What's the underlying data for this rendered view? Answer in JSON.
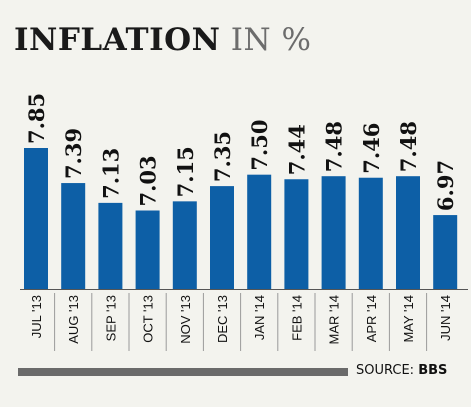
{
  "title": {
    "main": "INFLATION",
    "unit": "IN %"
  },
  "source": {
    "label": "SOURCE:",
    "value": "BBS"
  },
  "chart_data": {
    "type": "bar",
    "title": "INFLATION IN %",
    "categories": [
      "JUL '13",
      "AUG '13",
      "SEP '13",
      "OCT '13",
      "NOV '13",
      "DEC '13",
      "JAN '14",
      "FEB '14",
      "MAR '14",
      "APR '14",
      "MAY '14",
      "JUN '14"
    ],
    "values": [
      7.85,
      7.39,
      7.13,
      7.03,
      7.15,
      7.35,
      7.5,
      7.44,
      7.48,
      7.46,
      7.48,
      6.97
    ],
    "value_labels": [
      "7.85",
      "7.39",
      "7.13",
      "7.03",
      "7.15",
      "7.35",
      "7.50",
      "7.44",
      "7.48",
      "7.46",
      "7.48",
      "6.97"
    ],
    "bar_color": "#0d5fa6",
    "grid": false,
    "legend": "none"
  }
}
